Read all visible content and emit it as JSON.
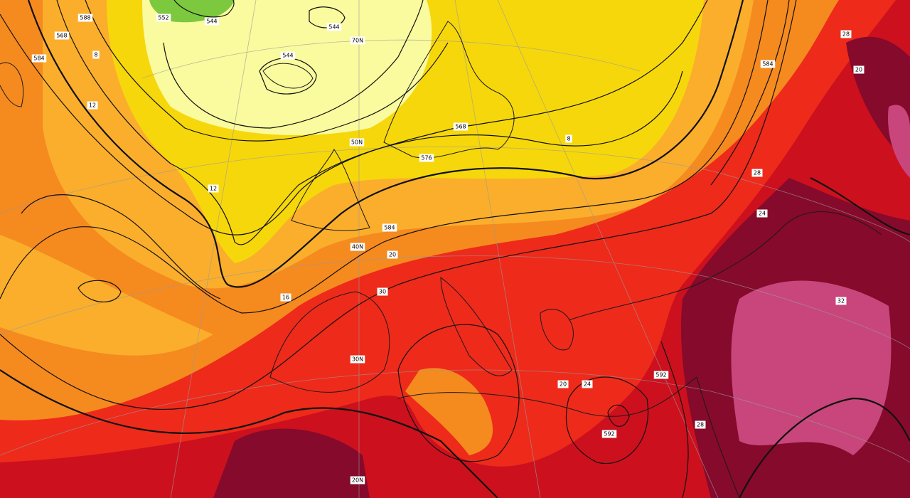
{
  "labels": [
    {
      "text": "588"
    },
    {
      "text": "552"
    },
    {
      "text": "544"
    },
    {
      "text": "544"
    },
    {
      "text": "544"
    },
    {
      "text": "70N"
    },
    {
      "text": "568"
    },
    {
      "text": "584"
    },
    {
      "text": "8"
    },
    {
      "text": "12"
    },
    {
      "text": "8"
    },
    {
      "text": "576"
    },
    {
      "text": "568"
    },
    {
      "text": "50N"
    },
    {
      "text": "12"
    },
    {
      "text": "584"
    },
    {
      "text": "40N"
    },
    {
      "text": "20"
    },
    {
      "text": "30"
    },
    {
      "text": "16"
    },
    {
      "text": "30N"
    },
    {
      "text": "20N"
    },
    {
      "text": "584"
    },
    {
      "text": "28"
    },
    {
      "text": "20"
    },
    {
      "text": "24"
    },
    {
      "text": "28"
    },
    {
      "text": "32"
    },
    {
      "text": "592"
    },
    {
      "text": "28"
    },
    {
      "text": "20"
    },
    {
      "text": "24"
    },
    {
      "text": "592"
    }
  ]
}
